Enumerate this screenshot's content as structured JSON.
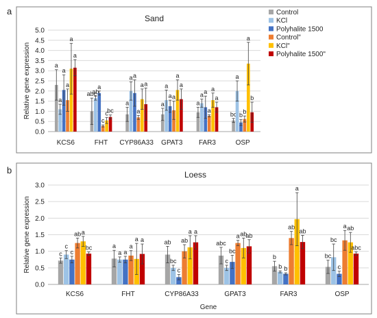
{
  "panels": [
    {
      "letter": "a"
    },
    {
      "letter": "b"
    }
  ],
  "legend": {
    "items": [
      {
        "label": "Control",
        "color": "#a6a6a6"
      },
      {
        "label": "KCl",
        "color": "#9dc3e6"
      },
      {
        "label": "Polyhalite 1500",
        "color": "#4472c4"
      },
      {
        "label": "Control\"",
        "color": "#ed7d31"
      },
      {
        "label": "KCl\"",
        "color": "#ffc000"
      },
      {
        "label": "Polyhalite 1500\"",
        "color": "#c00000"
      }
    ]
  },
  "chart_data": [
    {
      "type": "bar",
      "title": "Sand",
      "ylabel": "Relative gene expression",
      "xlabel": "",
      "ylim": [
        0,
        5.0
      ],
      "ytick_step": 0.5,
      "gridlines": true,
      "legend_position": "top-right",
      "categories": [
        "KCS6",
        "FHT",
        "CYP86A33",
        "GPAT3",
        "FAR3",
        "OSP"
      ],
      "series": [
        {
          "name": "Control",
          "color": "#a6a6a6",
          "values": [
            2.3,
            1.0,
            0.85,
            0.85,
            0.95,
            0.55
          ],
          "errors": [
            0.75,
            0.65,
            0.35,
            0.3,
            0.25,
            0.1
          ],
          "letters": [
            "a",
            "abc",
            "a",
            "a",
            "a",
            "bc"
          ]
        },
        {
          "name": "KCl",
          "color": "#9dc3e6",
          "values": [
            1.1,
            1.65,
            2.0,
            1.55,
            1.4,
            2.0
          ],
          "errors": [
            0.25,
            0.1,
            0.45,
            0.5,
            0.2,
            0.5
          ],
          "letters": [
            "a",
            "ab",
            "a",
            "a",
            "a",
            "a"
          ]
        },
        {
          "name": "Polyhalite 1500",
          "color": "#4472c4",
          "values": [
            2.05,
            1.9,
            1.9,
            1.25,
            1.2,
            0.45
          ],
          "errors": [
            0.75,
            0.1,
            0.65,
            0.3,
            0.55,
            0.15
          ],
          "letters": [
            "a",
            "a",
            "a",
            "a",
            "a",
            "b"
          ]
        },
        {
          "name": "Control\"",
          "color": "#ed7d31",
          "values": [
            1.55,
            0.28,
            0.7,
            1.05,
            0.78,
            0.62
          ],
          "errors": [
            0.55,
            0.05,
            0.1,
            0.45,
            0.05,
            0.15
          ],
          "letters": [
            "a",
            "c",
            "a",
            "a",
            "a",
            "b"
          ]
        },
        {
          "name": "KCl\"",
          "color": "#ffc000",
          "values": [
            3.1,
            0.55,
            1.6,
            2.05,
            1.55,
            3.35
          ],
          "errors": [
            1.25,
            0.15,
            0.5,
            0.5,
            0.35,
            1.05
          ],
          "letters": [
            "a",
            "c",
            "a",
            "a",
            "a",
            "a"
          ]
        },
        {
          "name": "Polyhalite 1500\"",
          "color": "#c00000",
          "values": [
            3.15,
            0.72,
            1.35,
            1.6,
            1.2,
            0.95
          ],
          "errors": [
            0.4,
            0.1,
            0.8,
            0.5,
            0.25,
            0.5
          ],
          "letters": [
            "a",
            "bc",
            "a",
            "a",
            "a",
            "b"
          ]
        }
      ]
    },
    {
      "type": "bar",
      "title": "Loess",
      "ylabel": "Relative gene expression",
      "xlabel": "Gene",
      "ylim": [
        0,
        3.0
      ],
      "ytick_step": 0.5,
      "gridlines": true,
      "categories": [
        "KCS6",
        "FHT",
        "CYP86A33",
        "GPAT3",
        "FAR3",
        "OSP"
      ],
      "series": [
        {
          "name": "Control",
          "color": "#a6a6a6",
          "values": [
            0.72,
            0.78,
            0.9,
            0.87,
            0.55,
            0.53
          ],
          "errors": [
            0.08,
            0.25,
            0.25,
            0.25,
            0.15,
            0.2
          ],
          "letters": [
            "c",
            "a",
            "ab",
            "abc",
            "b",
            "bc"
          ]
        },
        {
          "name": "KCl",
          "color": "#9dc3e6",
          "values": [
            0.9,
            0.75,
            0.5,
            0.5,
            0.38,
            0.82
          ],
          "errors": [
            0.12,
            0.08,
            0.08,
            0.08,
            0.03,
            0.4
          ],
          "letters": [
            "c",
            "a",
            "bc",
            "c",
            "b",
            "bc"
          ]
        },
        {
          "name": "Polyhalite 1500",
          "color": "#4472c4",
          "values": [
            0.75,
            0.75,
            0.22,
            0.68,
            0.32,
            0.32
          ],
          "errors": [
            0.1,
            0.1,
            0.08,
            0.2,
            0.03,
            0.08
          ],
          "letters": [
            "c",
            "a",
            "c",
            "bc",
            "b",
            "c"
          ]
        },
        {
          "name": "Control\"",
          "color": "#ed7d31",
          "values": [
            1.25,
            0.87,
            1.0,
            1.25,
            1.4,
            1.33
          ],
          "errors": [
            0.15,
            0.15,
            0.2,
            0.08,
            0.2,
            0.3
          ],
          "letters": [
            "ab",
            "a",
            "ab",
            "a",
            "ab",
            "a"
          ]
        },
        {
          "name": "KCl\"",
          "color": "#ffc000",
          "values": [
            1.3,
            0.77,
            1.12,
            1.1,
            1.97,
            1.27
          ],
          "errors": [
            0.15,
            0.47,
            0.35,
            0.3,
            0.8,
            0.3
          ],
          "letters": [
            "a",
            "a",
            "a",
            "ab",
            "a",
            "ab"
          ]
        },
        {
          "name": "Polyhalite 1500\"",
          "color": "#c00000",
          "values": [
            0.93,
            0.92,
            1.27,
            1.15,
            1.28,
            0.93
          ],
          "errors": [
            0.05,
            0.3,
            0.2,
            0.2,
            0.2,
            0.05
          ],
          "letters": [
            "bc",
            "a",
            "a",
            "ab",
            "ab",
            "abc"
          ]
        }
      ]
    }
  ]
}
